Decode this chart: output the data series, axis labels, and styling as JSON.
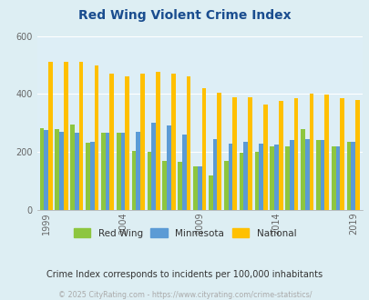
{
  "title": "Red Wing Violent Crime Index",
  "title_color": "#1a4d8f",
  "subtitle": "Crime Index corresponds to incidents per 100,000 inhabitants",
  "footer": "© 2025 CityRating.com - https://www.cityrating.com/crime-statistics/",
  "years": [
    1999,
    2000,
    2001,
    2002,
    2003,
    2004,
    2005,
    2006,
    2007,
    2008,
    2009,
    2010,
    2011,
    2012,
    2013,
    2014,
    2015,
    2016,
    2017,
    2018,
    2019
  ],
  "red_wing": [
    282,
    280,
    295,
    232,
    265,
    265,
    205,
    200,
    170,
    165,
    150,
    120,
    170,
    198,
    200,
    220,
    220,
    280,
    240,
    218,
    235
  ],
  "minnesota": [
    275,
    270,
    265,
    235,
    265,
    265,
    270,
    300,
    290,
    260,
    150,
    245,
    230,
    235,
    230,
    225,
    240,
    245,
    240,
    220,
    235
  ],
  "national": [
    510,
    510,
    510,
    500,
    470,
    460,
    470,
    475,
    470,
    460,
    420,
    405,
    388,
    390,
    365,
    375,
    385,
    400,
    397,
    385,
    380
  ],
  "colors": {
    "red_wing": "#8dc63f",
    "minnesota": "#5b9bd5",
    "national": "#ffc000"
  },
  "ylim": [
    0,
    600
  ],
  "yticks": [
    0,
    200,
    400,
    600
  ],
  "bg_color": "#ddeef3",
  "plot_bg": "#ddeef6",
  "grid_color": "#ffffff",
  "legend_labels": [
    "Red Wing",
    "Minnesota",
    "National"
  ],
  "bar_width": 0.28,
  "figsize": [
    4.06,
    3.3
  ],
  "dpi": 100
}
